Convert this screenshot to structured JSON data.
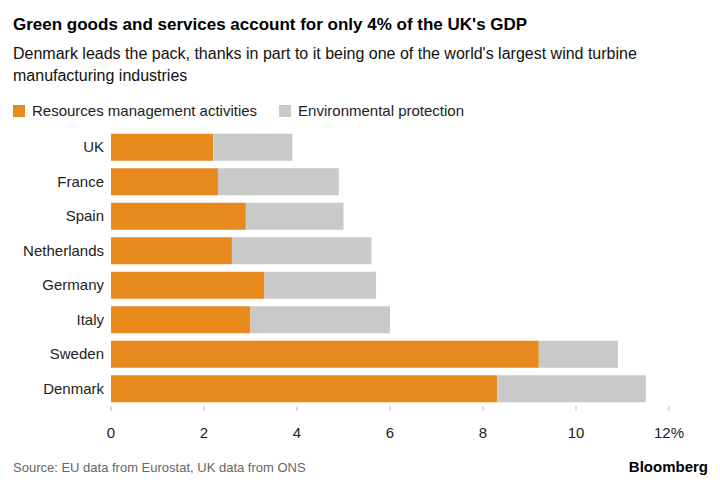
{
  "chart_data": {
    "type": "bar",
    "orientation": "horizontal",
    "stacked": true,
    "grid": false,
    "title": "Green goods and services account for only 4% of the UK's GDP",
    "subtitle": "Denmark leads the pack, thanks in part to it being one of the world's largest wind turbine manufacturing industries",
    "categories": [
      "UK",
      "France",
      "Spain",
      "Netherlands",
      "Germany",
      "Italy",
      "Sweden",
      "Denmark"
    ],
    "series": [
      {
        "name": "Resources management activities",
        "color": "#e8891d",
        "values": [
          2.2,
          2.3,
          2.9,
          2.6,
          3.3,
          3.0,
          9.2,
          8.3
        ]
      },
      {
        "name": "Environmental protection",
        "color": "#c9c9c9",
        "values": [
          1.7,
          2.6,
          2.1,
          3.0,
          2.4,
          3.0,
          1.7,
          3.2
        ]
      }
    ],
    "xlim": [
      0,
      12
    ],
    "xticks": [
      0,
      2,
      4,
      6,
      8,
      10,
      {
        "value": 12,
        "label": "12%"
      }
    ],
    "source": "Source: EU data from Eurostat, UK data from ONS",
    "credit": "Bloomberg"
  }
}
